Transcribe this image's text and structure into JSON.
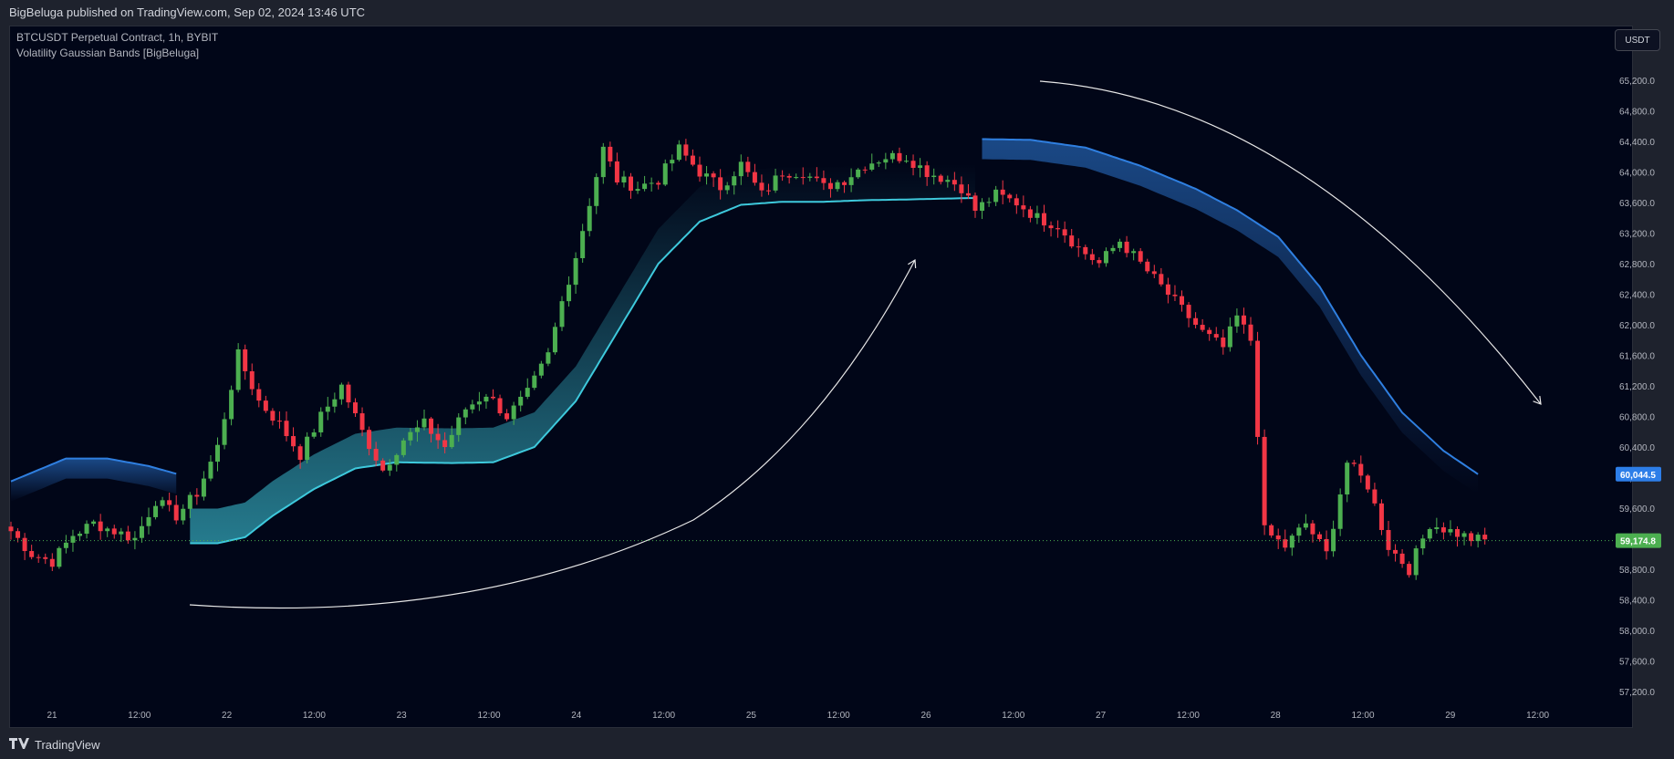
{
  "header": {
    "publisher_line": "BigBeluga published on TradingView.com, Sep 02, 2024 13:46 UTC"
  },
  "legend": {
    "symbol_line": "BTCUSDT Perpetual Contract, 1h, BYBIT",
    "indicator_line": "Volatility Gaussian Bands  [BigBeluga]"
  },
  "toolbar": {
    "currency_label": "USDT"
  },
  "footer": {
    "brand": "TradingView",
    "logo_icon": "tradingview-logo-icon"
  },
  "colors": {
    "background": "#010618",
    "up_candle": "#4caf50",
    "down_candle": "#f23645",
    "upper_band": "#2f7fe0",
    "lower_band": "#3ec9dc",
    "last_price_badge": "#4caf50",
    "band_badge": "#2d7ee8"
  },
  "chart_data": {
    "type": "candlestick",
    "title": "BTCUSDT Perpetual Contract, 1h, BYBIT",
    "y_axis": {
      "ticks": [
        "65,200.0",
        "64,800.0",
        "64,400.0",
        "64,000.0",
        "63,600.0",
        "63,200.0",
        "62,800.0",
        "62,400.0",
        "62,000.0",
        "61,600.0",
        "61,200.0",
        "60,800.0",
        "60,400.0",
        "60,000.0",
        "59,600.0",
        "59,200.0",
        "58,800.0",
        "58,400.0",
        "58,000.0",
        "57,600.0",
        "57,200.0"
      ],
      "range": [
        57000,
        65400
      ],
      "position": "right"
    },
    "x_axis": {
      "ticks": [
        "21",
        "12:00",
        "22",
        "12:00",
        "23",
        "12:00",
        "24",
        "12:00",
        "25",
        "12:00",
        "26",
        "12:00",
        "27",
        "12:00",
        "28",
        "12:00",
        "29",
        "12:00"
      ]
    },
    "price_markers": [
      {
        "label": "60,044.5",
        "value": 60044.5,
        "kind": "band"
      },
      {
        "label": "59,174.8",
        "value": 59174.8,
        "kind": "last"
      }
    ],
    "grid": false,
    "keypoints": [
      [
        0,
        59300
      ],
      [
        3,
        59000
      ],
      [
        6,
        58900
      ],
      [
        9,
        59250
      ],
      [
        12,
        59400
      ],
      [
        15,
        59300
      ],
      [
        18,
        59200
      ],
      [
        21,
        59700
      ],
      [
        24,
        59500
      ],
      [
        27,
        59800
      ],
      [
        30,
        60400
      ],
      [
        33,
        61600
      ],
      [
        36,
        61000
      ],
      [
        39,
        60700
      ],
      [
        42,
        60300
      ],
      [
        45,
        60800
      ],
      [
        48,
        61200
      ],
      [
        51,
        60600
      ],
      [
        54,
        60100
      ],
      [
        57,
        60500
      ],
      [
        60,
        60700
      ],
      [
        63,
        60400
      ],
      [
        66,
        60900
      ],
      [
        69,
        61100
      ],
      [
        72,
        60800
      ],
      [
        75,
        61100
      ],
      [
        78,
        61600
      ],
      [
        80,
        62300
      ],
      [
        82,
        62900
      ],
      [
        84,
        63600
      ],
      [
        86,
        64300
      ],
      [
        88,
        63900
      ],
      [
        91,
        63800
      ],
      [
        94,
        63900
      ],
      [
        97,
        64300
      ],
      [
        100,
        64000
      ],
      [
        103,
        63800
      ],
      [
        106,
        64100
      ],
      [
        109,
        63700
      ],
      [
        112,
        64000
      ],
      [
        115,
        64000
      ],
      [
        118,
        63800
      ],
      [
        121,
        63900
      ],
      [
        124,
        64100
      ],
      [
        127,
        64200
      ],
      [
        130,
        64200
      ],
      [
        133,
        64000
      ],
      [
        136,
        63900
      ],
      [
        138,
        63800
      ],
      [
        140,
        63500
      ],
      [
        143,
        63700
      ],
      [
        146,
        63600
      ],
      [
        149,
        63400
      ],
      [
        152,
        63300
      ],
      [
        155,
        63000
      ],
      [
        158,
        62800
      ],
      [
        161,
        63100
      ],
      [
        164,
        62800
      ],
      [
        167,
        62500
      ],
      [
        170,
        62200
      ],
      [
        173,
        61900
      ],
      [
        176,
        61700
      ],
      [
        178,
        62100
      ],
      [
        180,
        61800
      ],
      [
        181,
        60600
      ],
      [
        182,
        59300
      ],
      [
        185,
        59100
      ],
      [
        188,
        59400
      ],
      [
        191,
        59000
      ],
      [
        194,
        60200
      ],
      [
        197,
        59900
      ],
      [
        200,
        59100
      ],
      [
        203,
        58800
      ],
      [
        206,
        59400
      ],
      [
        209,
        59300
      ],
      [
        212,
        59200
      ],
      [
        214,
        59175
      ]
    ],
    "series": [
      {
        "name": "upper_band",
        "points": [
          [
            0,
            59950
          ],
          [
            8,
            60250
          ],
          [
            14,
            60250
          ],
          [
            20,
            60150
          ],
          [
            24,
            60050
          ],
          [
            141,
            64430
          ],
          [
            148,
            64420
          ],
          [
            156,
            64320
          ],
          [
            164,
            64080
          ],
          [
            172,
            63780
          ],
          [
            178,
            63500
          ],
          [
            184,
            63150
          ],
          [
            190,
            62500
          ],
          [
            196,
            61600
          ],
          [
            202,
            60850
          ],
          [
            208,
            60350
          ],
          [
            213,
            60044.5
          ]
        ]
      },
      {
        "name": "lower_band",
        "points": [
          [
            26,
            59140
          ],
          [
            30,
            59140
          ],
          [
            34,
            59220
          ],
          [
            38,
            59500
          ],
          [
            44,
            59850
          ],
          [
            50,
            60120
          ],
          [
            56,
            60200
          ],
          [
            64,
            60190
          ],
          [
            70,
            60200
          ],
          [
            76,
            60400
          ],
          [
            82,
            61000
          ],
          [
            88,
            61900
          ],
          [
            94,
            62800
          ],
          [
            100,
            63350
          ],
          [
            106,
            63570
          ],
          [
            112,
            63610
          ],
          [
            118,
            63610
          ],
          [
            124,
            63630
          ],
          [
            130,
            63640
          ],
          [
            140,
            63660
          ]
        ]
      }
    ]
  }
}
